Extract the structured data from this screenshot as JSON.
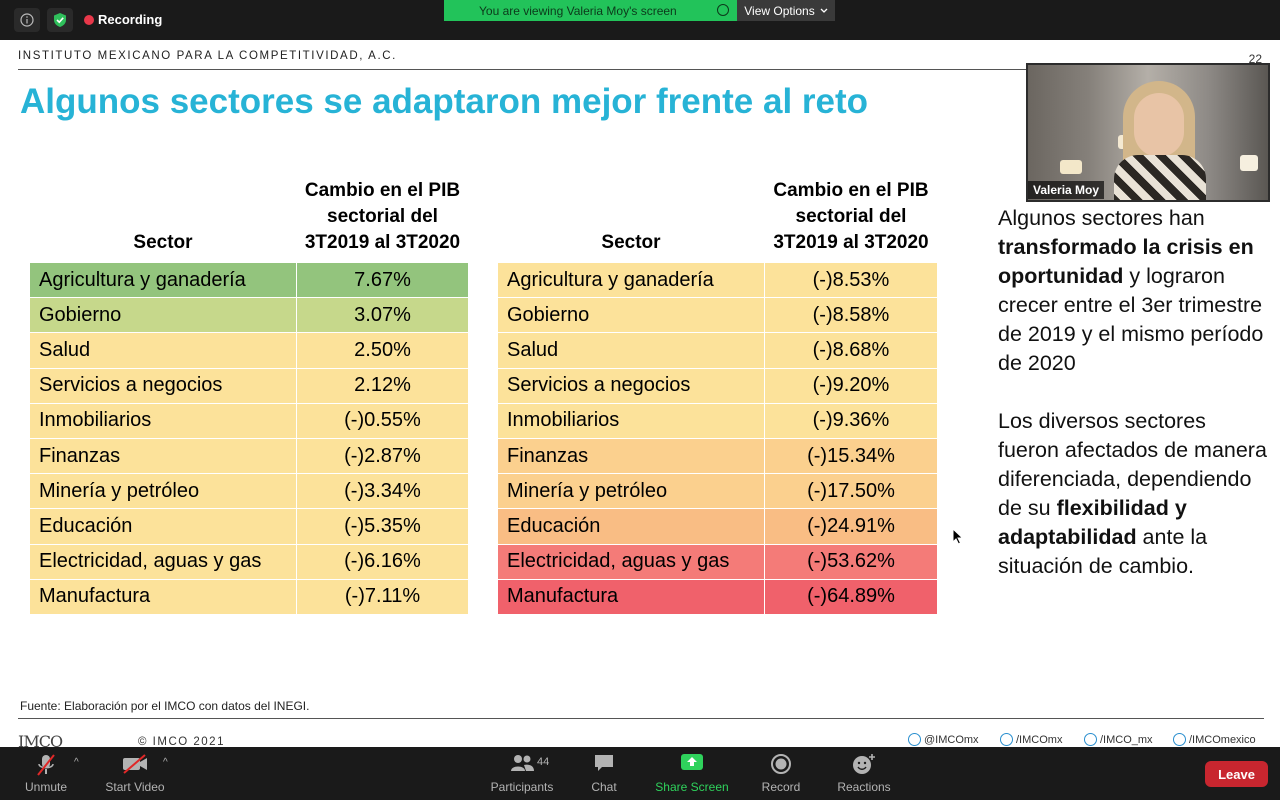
{
  "topbar": {
    "recording_label": "Recording",
    "viewing_text": "You are viewing Valeria Moy's screen",
    "view_options": "View Options"
  },
  "slide": {
    "org": "INSTITUTO MEXICANO PARA LA COMPETITIVIDAD, A.C.",
    "page_number": "22",
    "title": "Algunos sectores se adaptaron mejor frente al reto",
    "table_headers": {
      "sector": "Sector",
      "change": "Cambio en el PIB sectorial del 3T2019 al 3T2020"
    },
    "table_left": [
      {
        "sector": "Agricultura y ganadería",
        "value": "7.67%",
        "color": "#93c47d"
      },
      {
        "sector": "Gobierno",
        "value": "3.07%",
        "color": "#c6d88b"
      },
      {
        "sector": "Salud",
        "value": "2.50%",
        "color": "#fce29a"
      },
      {
        "sector": "Servicios a negocios",
        "value": "2.12%",
        "color": "#fce29a"
      },
      {
        "sector": "Inmobiliarios",
        "value": "(-)0.55%",
        "color": "#fce29a"
      },
      {
        "sector": "Finanzas",
        "value": "(-)2.87%",
        "color": "#fce29a"
      },
      {
        "sector": "Minería y petróleo",
        "value": "(-)3.34%",
        "color": "#fce29a"
      },
      {
        "sector": "Educación",
        "value": "(-)5.35%",
        "color": "#fce29a"
      },
      {
        "sector": "Electricidad, aguas y gas",
        "value": "(-)6.16%",
        "color": "#fce29a"
      },
      {
        "sector": "Manufactura",
        "value": "(-)7.11%",
        "color": "#fce29a"
      }
    ],
    "table_right": [
      {
        "sector": "Agricultura y ganadería",
        "value": "(-)8.53%",
        "color": "#fce29a"
      },
      {
        "sector": "Gobierno",
        "value": "(-)8.58%",
        "color": "#fce29a"
      },
      {
        "sector": "Salud",
        "value": "(-)8.68%",
        "color": "#fce29a"
      },
      {
        "sector": "Servicios a negocios",
        "value": "(-)9.20%",
        "color": "#fce29a"
      },
      {
        "sector": "Inmobiliarios",
        "value": "(-)9.36%",
        "color": "#fce29a"
      },
      {
        "sector": "Finanzas",
        "value": "(-)15.34%",
        "color": "#fbd08e"
      },
      {
        "sector": "Minería y petróleo",
        "value": "(-)17.50%",
        "color": "#fbd08e"
      },
      {
        "sector": "Educación",
        "value": "(-)24.91%",
        "color": "#f9bd84"
      },
      {
        "sector": "Electricidad, aguas y gas",
        "value": "(-)53.62%",
        "color": "#f47b78"
      },
      {
        "sector": "Manufactura",
        "value": "(-)64.89%",
        "color": "#f0616b"
      }
    ],
    "side_p1": {
      "t1": "Algunos sectores han ",
      "b1": "transformado la crisis en oportunidad",
      "t2": " y lograron crecer entre el 3er trimestre de 2019 y el mismo período de 2020"
    },
    "side_p2": {
      "t1": "Los diversos sectores fueron afectados de manera diferenciada, dependiendo de su ",
      "b1": "flexibilidad y adaptabilidad",
      "t2": " ante la situación de cambio."
    },
    "source": "Fuente: Elaboración por el IMCO con datos del INEGI.",
    "logo": "IMCO",
    "copyright": "© IMCO 2021",
    "social": [
      "@IMCOmx",
      "/IMCOmx",
      "/IMCO_mx",
      "/IMCOmexico"
    ]
  },
  "video": {
    "name": "Valeria Moy"
  },
  "toolbar": {
    "unmute": "Unmute",
    "start_video": "Start Video",
    "participants": "Participants",
    "participants_count": "44",
    "chat": "Chat",
    "share_screen": "Share Screen",
    "record": "Record",
    "reactions": "Reactions",
    "leave": "Leave"
  }
}
